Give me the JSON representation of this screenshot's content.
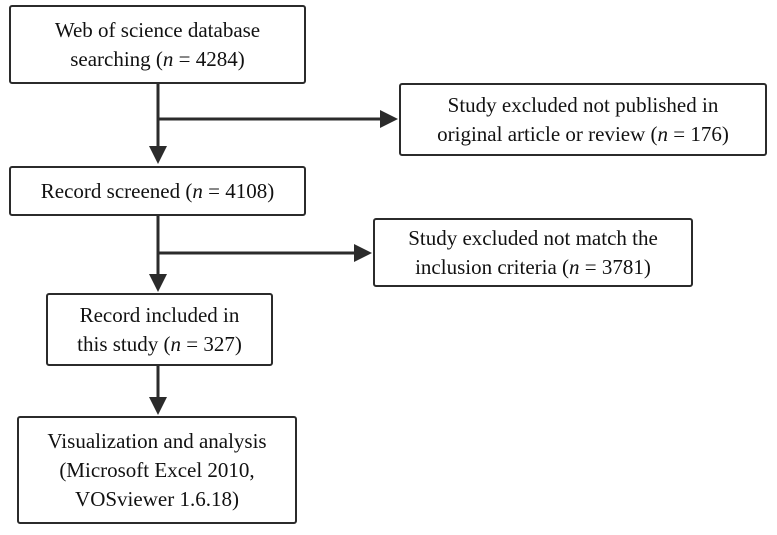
{
  "boxes": {
    "search": {
      "line1": "Web of science database",
      "line2_prefix": "searching (",
      "n_label": "n",
      "line2_suffix": " = 4284)"
    },
    "excluded_type": {
      "line1": "Study excluded not published in",
      "line2_prefix": "original article or review (",
      "n_label": "n",
      "line2_suffix": " = 176)"
    },
    "screened": {
      "line1_prefix": "Record screened (",
      "n_label": "n",
      "line1_suffix": " = 4108)"
    },
    "excluded_criteria": {
      "line1": "Study excluded not match the",
      "line2_prefix": "inclusion criteria (",
      "n_label": "n",
      "line2_suffix": " = 3781)"
    },
    "included": {
      "line1": "Record included in",
      "line2_prefix": "this study (",
      "n_label": "n",
      "line2_suffix": " = 327)"
    },
    "visualization": {
      "line1": "Visualization and analysis",
      "line2": "(Microsoft Excel 2010,",
      "line3": "VOSviewer 1.6.18)"
    }
  },
  "colors": {
    "stroke": "#2b2b2b",
    "text": "#111111",
    "background": "#ffffff"
  }
}
